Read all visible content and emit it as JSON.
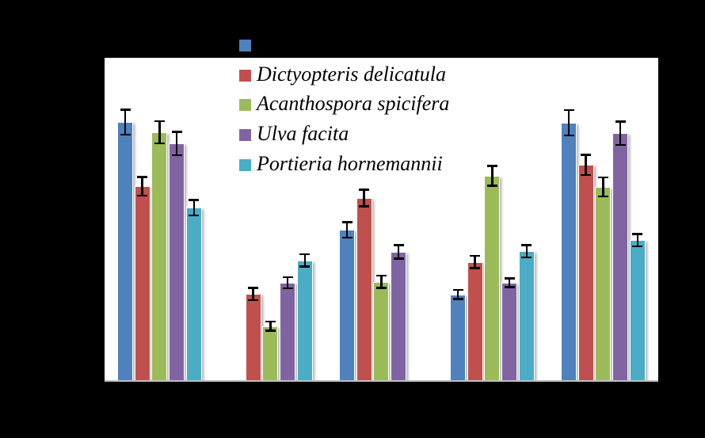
{
  "page": {
    "background_color": "#000000",
    "note": "chart title, axis titles, axis tick labels and the first legend label are rendered in black on the black background and are not readable"
  },
  "plot": {
    "background_color": "#ffffff",
    "axis_line_color": "#bfbfbf"
  },
  "legend": {
    "position": "top-left, overlapping plot area",
    "text_color": "#000000",
    "first_label_visible": false
  },
  "chart_data": {
    "type": "bar",
    "title": "",
    "xlabel": "",
    "ylabel": "",
    "categories": [
      "",
      "",
      "",
      "",
      ""
    ],
    "categories_visible": false,
    "value_units": "percent of plot height (y-axis scale not visible)",
    "ylim": [
      0,
      100
    ],
    "grid": false,
    "error_bars": true,
    "legend_position": "upper-left",
    "series": [
      {
        "name": "",
        "color": "#4F81BD",
        "values": [
          79.9,
          0,
          46.7,
          26.7,
          79.7
        ],
        "errors": [
          4.2,
          0,
          2.7,
          1.7,
          4.2
        ]
      },
      {
        "name": "Dictyopteris delicatula",
        "color": "#C0504D",
        "values": [
          60.1,
          26.9,
          56.5,
          36.7,
          66.7
        ],
        "errors": [
          3.2,
          2.2,
          2.9,
          2.2,
          3.4
        ]
      },
      {
        "name": "Acanthospora spicifera",
        "color": "#9BBB59",
        "values": [
          76.8,
          16.9,
          30.6,
          63.3,
          59.9
        ],
        "errors": [
          3.7,
          1.7,
          2.2,
          3.4,
          3.2
        ]
      },
      {
        "name": "Ulva facita",
        "color": "#8064A2",
        "values": [
          73.3,
          30.3,
          39.9,
          30.3,
          76.5
        ],
        "errors": [
          3.9,
          2.0,
          2.4,
          1.7,
          3.9
        ]
      },
      {
        "name": "Portieria hornemannii",
        "color": "#4BACC6",
        "values": [
          53.5,
          37.2,
          0,
          40.1,
          43.5
        ],
        "errors": [
          2.7,
          2.2,
          0,
          2.2,
          2.2
        ]
      }
    ]
  }
}
